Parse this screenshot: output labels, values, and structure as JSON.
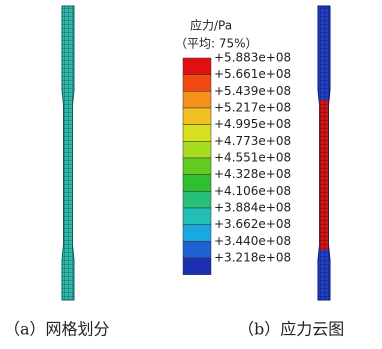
{
  "legend": {
    "title": "应力/Pa",
    "subtitle": "（平均: 75%）",
    "labels": [
      "+5.883e+08",
      "+5.661e+08",
      "+5.439e+08",
      "+5.217e+08",
      "+4.995e+08",
      "+4.773e+08",
      "+4.551e+08",
      "+4.328e+08",
      "+4.106e+08",
      "+3.884e+08",
      "+3.662e+08",
      "+3.440e+08",
      "+3.218e+08"
    ],
    "colors": [
      "#e01010",
      "#f04a10",
      "#f5901a",
      "#f2c020",
      "#d8e020",
      "#a8dc20",
      "#62cc22",
      "#2ec030",
      "#26c07a",
      "#22c0b4",
      "#1aa8e0",
      "#2060d0",
      "#1a30b0"
    ]
  },
  "captions": [
    "（a）网格划分",
    "（b）应力云图"
  ]
}
